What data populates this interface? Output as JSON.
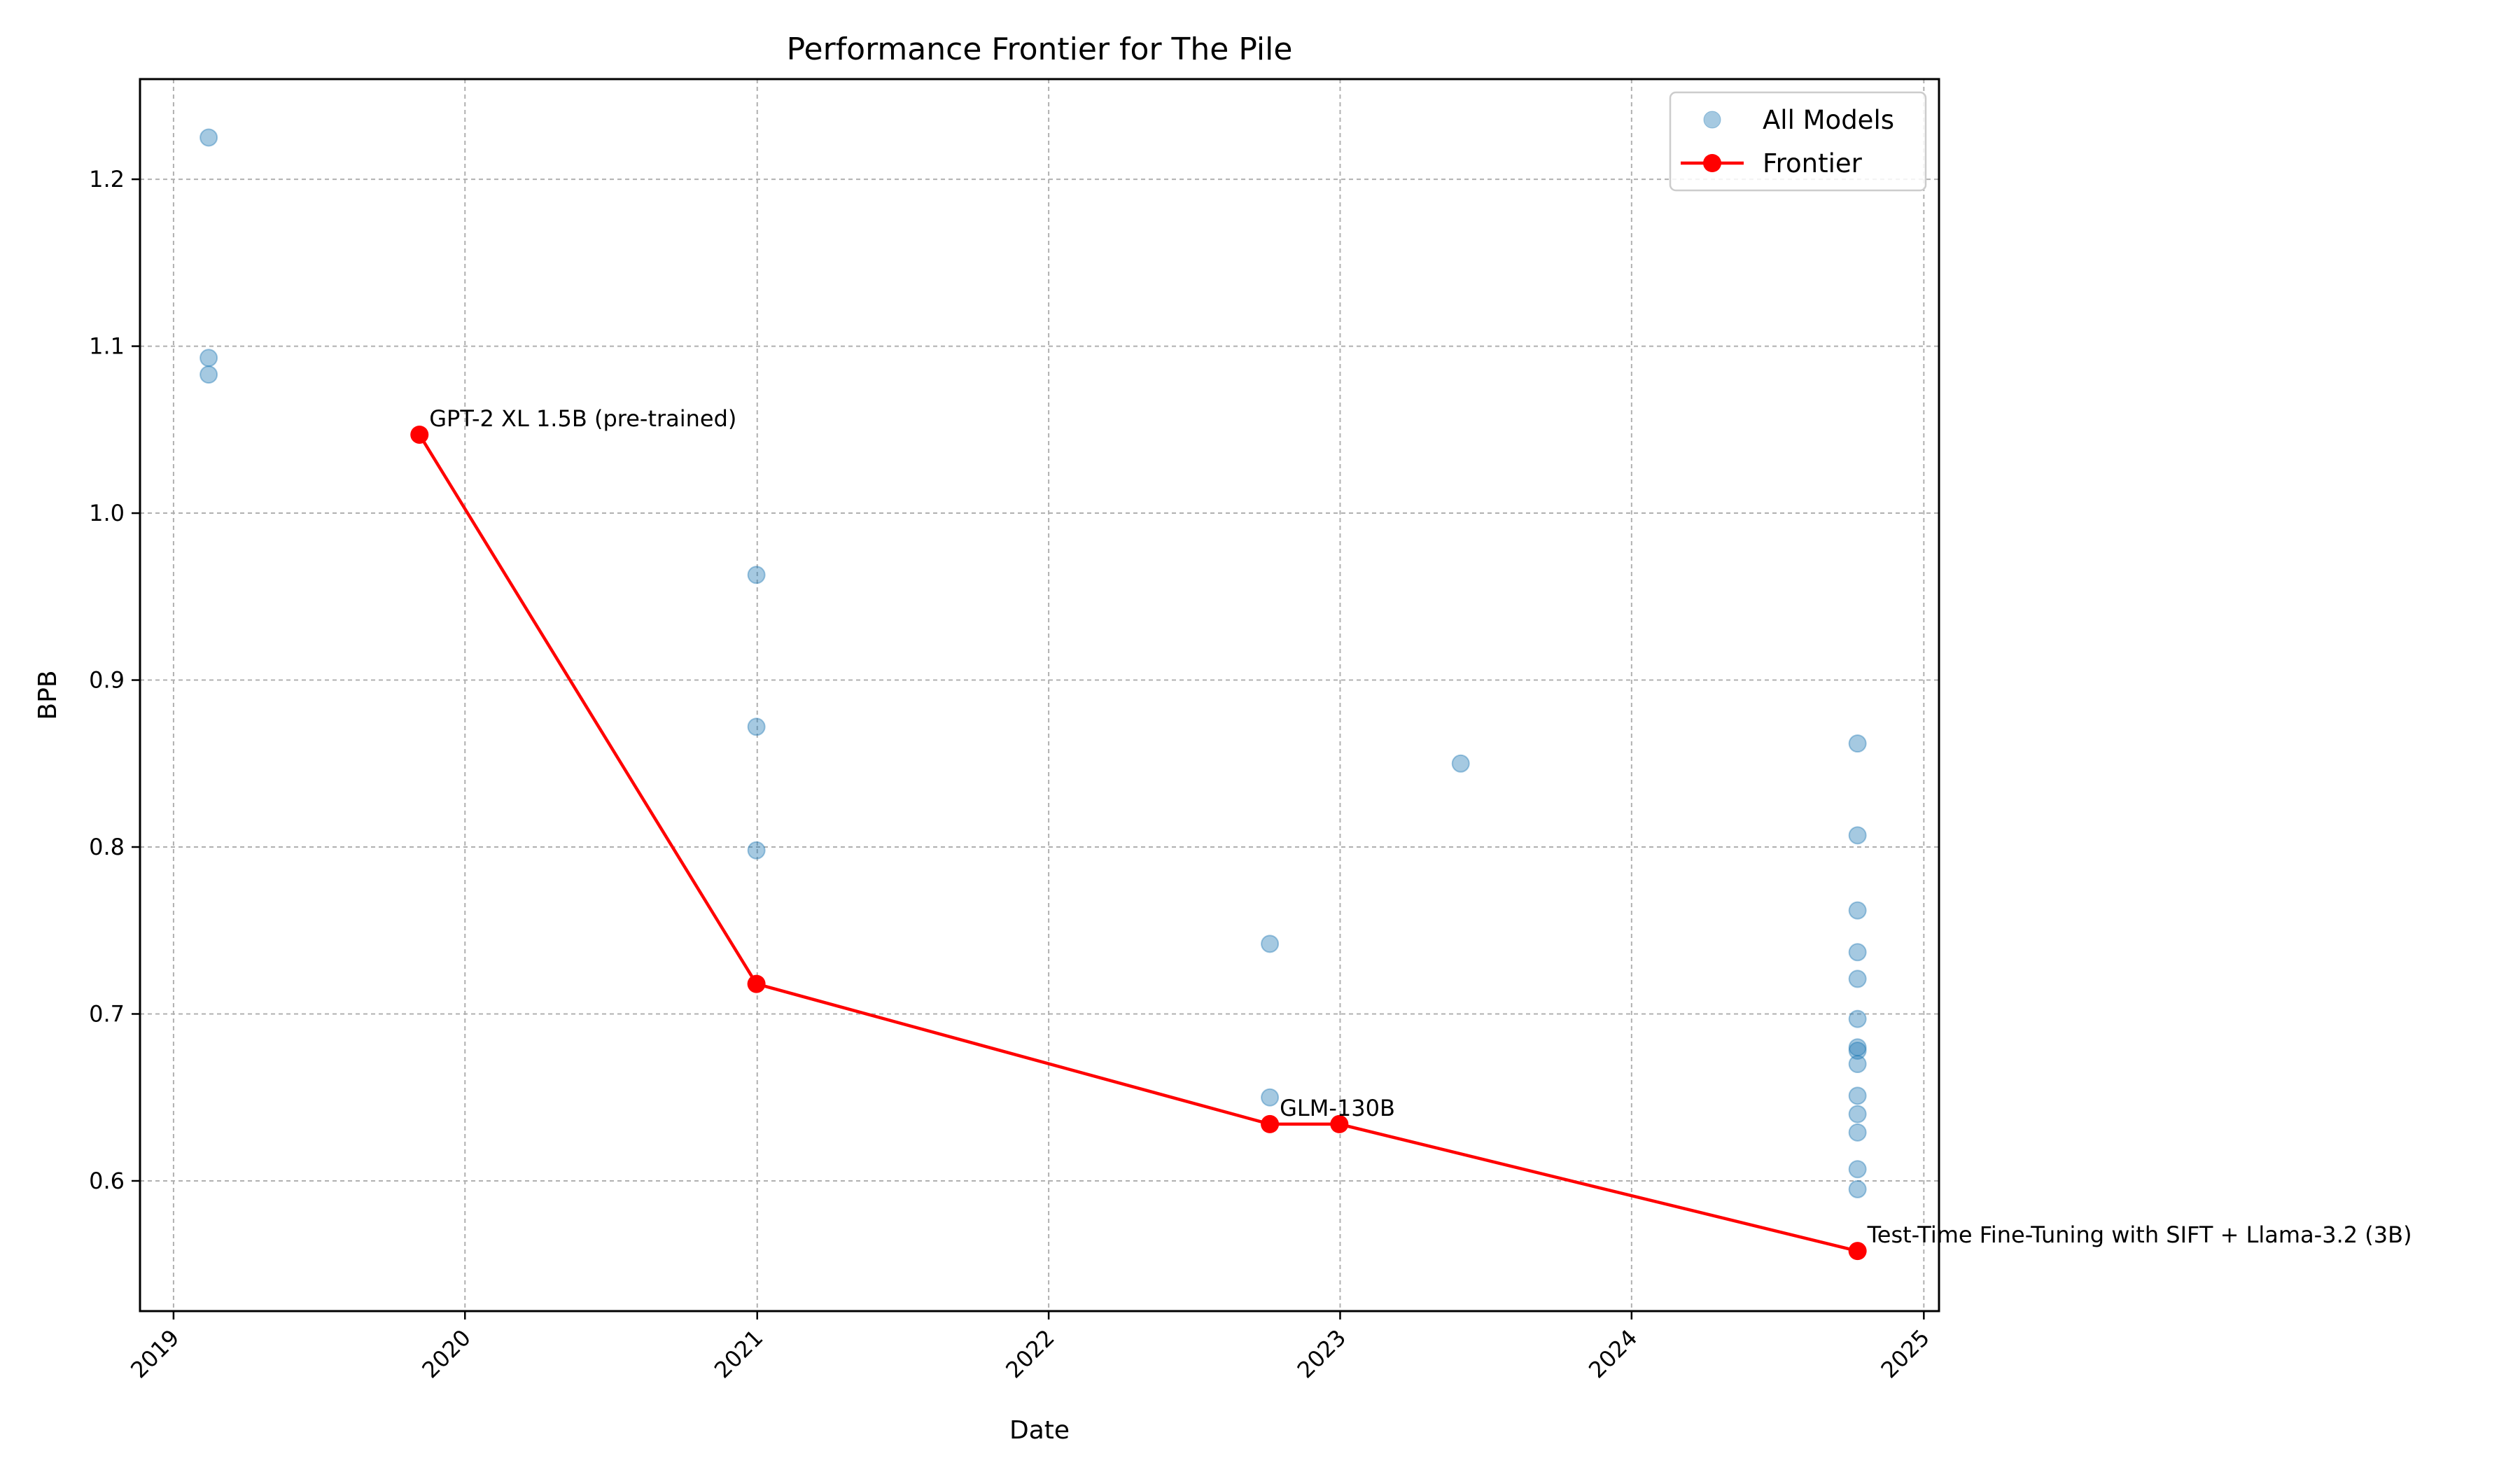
{
  "chart_data": {
    "type": "scatter",
    "title": "Performance Frontier for The Pile",
    "xlabel": "Date",
    "ylabel": "BPB",
    "xlim": [
      "2018-11-20",
      "2025-01-20"
    ],
    "ylim": [
      0.522,
      1.26
    ],
    "x_ticks": [
      "2019",
      "2020",
      "2021",
      "2022",
      "2023",
      "2024",
      "2025"
    ],
    "y_ticks": [
      "0.6",
      "0.7",
      "0.8",
      "0.9",
      "1.0",
      "1.1",
      "1.2"
    ],
    "grid": true,
    "legend_position": "top-right",
    "colors": {
      "all_models": "#1f77b4",
      "frontier": "#ff0000"
    },
    "series": [
      {
        "name": "All Models",
        "kind": "scatter",
        "points": [
          {
            "x": "2019-02-14",
            "y": 1.225
          },
          {
            "x": "2019-02-14",
            "y": 1.093
          },
          {
            "x": "2019-02-14",
            "y": 1.083
          },
          {
            "x": "2020-12-31",
            "y": 0.963
          },
          {
            "x": "2020-12-31",
            "y": 0.872
          },
          {
            "x": "2020-12-31",
            "y": 0.798
          },
          {
            "x": "2022-10-05",
            "y": 0.742
          },
          {
            "x": "2022-10-05",
            "y": 0.65
          },
          {
            "x": "2023-06-01",
            "y": 0.85
          },
          {
            "x": "2024-10-10",
            "y": 0.862
          },
          {
            "x": "2024-10-10",
            "y": 0.807
          },
          {
            "x": "2024-10-10",
            "y": 0.762
          },
          {
            "x": "2024-10-10",
            "y": 0.737
          },
          {
            "x": "2024-10-10",
            "y": 0.721
          },
          {
            "x": "2024-10-10",
            "y": 0.697
          },
          {
            "x": "2024-10-10",
            "y": 0.68
          },
          {
            "x": "2024-10-10",
            "y": 0.678
          },
          {
            "x": "2024-10-10",
            "y": 0.67
          },
          {
            "x": "2024-10-10",
            "y": 0.651
          },
          {
            "x": "2024-10-10",
            "y": 0.64
          },
          {
            "x": "2024-10-10",
            "y": 0.629
          },
          {
            "x": "2024-10-10",
            "y": 0.607
          },
          {
            "x": "2024-10-10",
            "y": 0.595
          }
        ]
      },
      {
        "name": "Frontier",
        "kind": "line",
        "points": [
          {
            "x": "2019-11-05",
            "y": 1.047
          },
          {
            "x": "2020-12-31",
            "y": 0.718
          },
          {
            "x": "2022-10-05",
            "y": 0.634
          },
          {
            "x": "2022-12-31",
            "y": 0.634
          },
          {
            "x": "2024-10-10",
            "y": 0.558
          }
        ]
      }
    ],
    "annotations": [
      {
        "text": "GPT-2 XL 1.5B (pre-trained)",
        "x": "2019-11-05",
        "y": 1.047
      },
      {
        "text": "GLM-130B",
        "x": "2022-10-05",
        "y": 0.634
      },
      {
        "text": "Test-Time Fine-Tuning with SIFT + Llama-3.2 (3B)",
        "x": "2024-10-10",
        "y": 0.558
      }
    ]
  }
}
